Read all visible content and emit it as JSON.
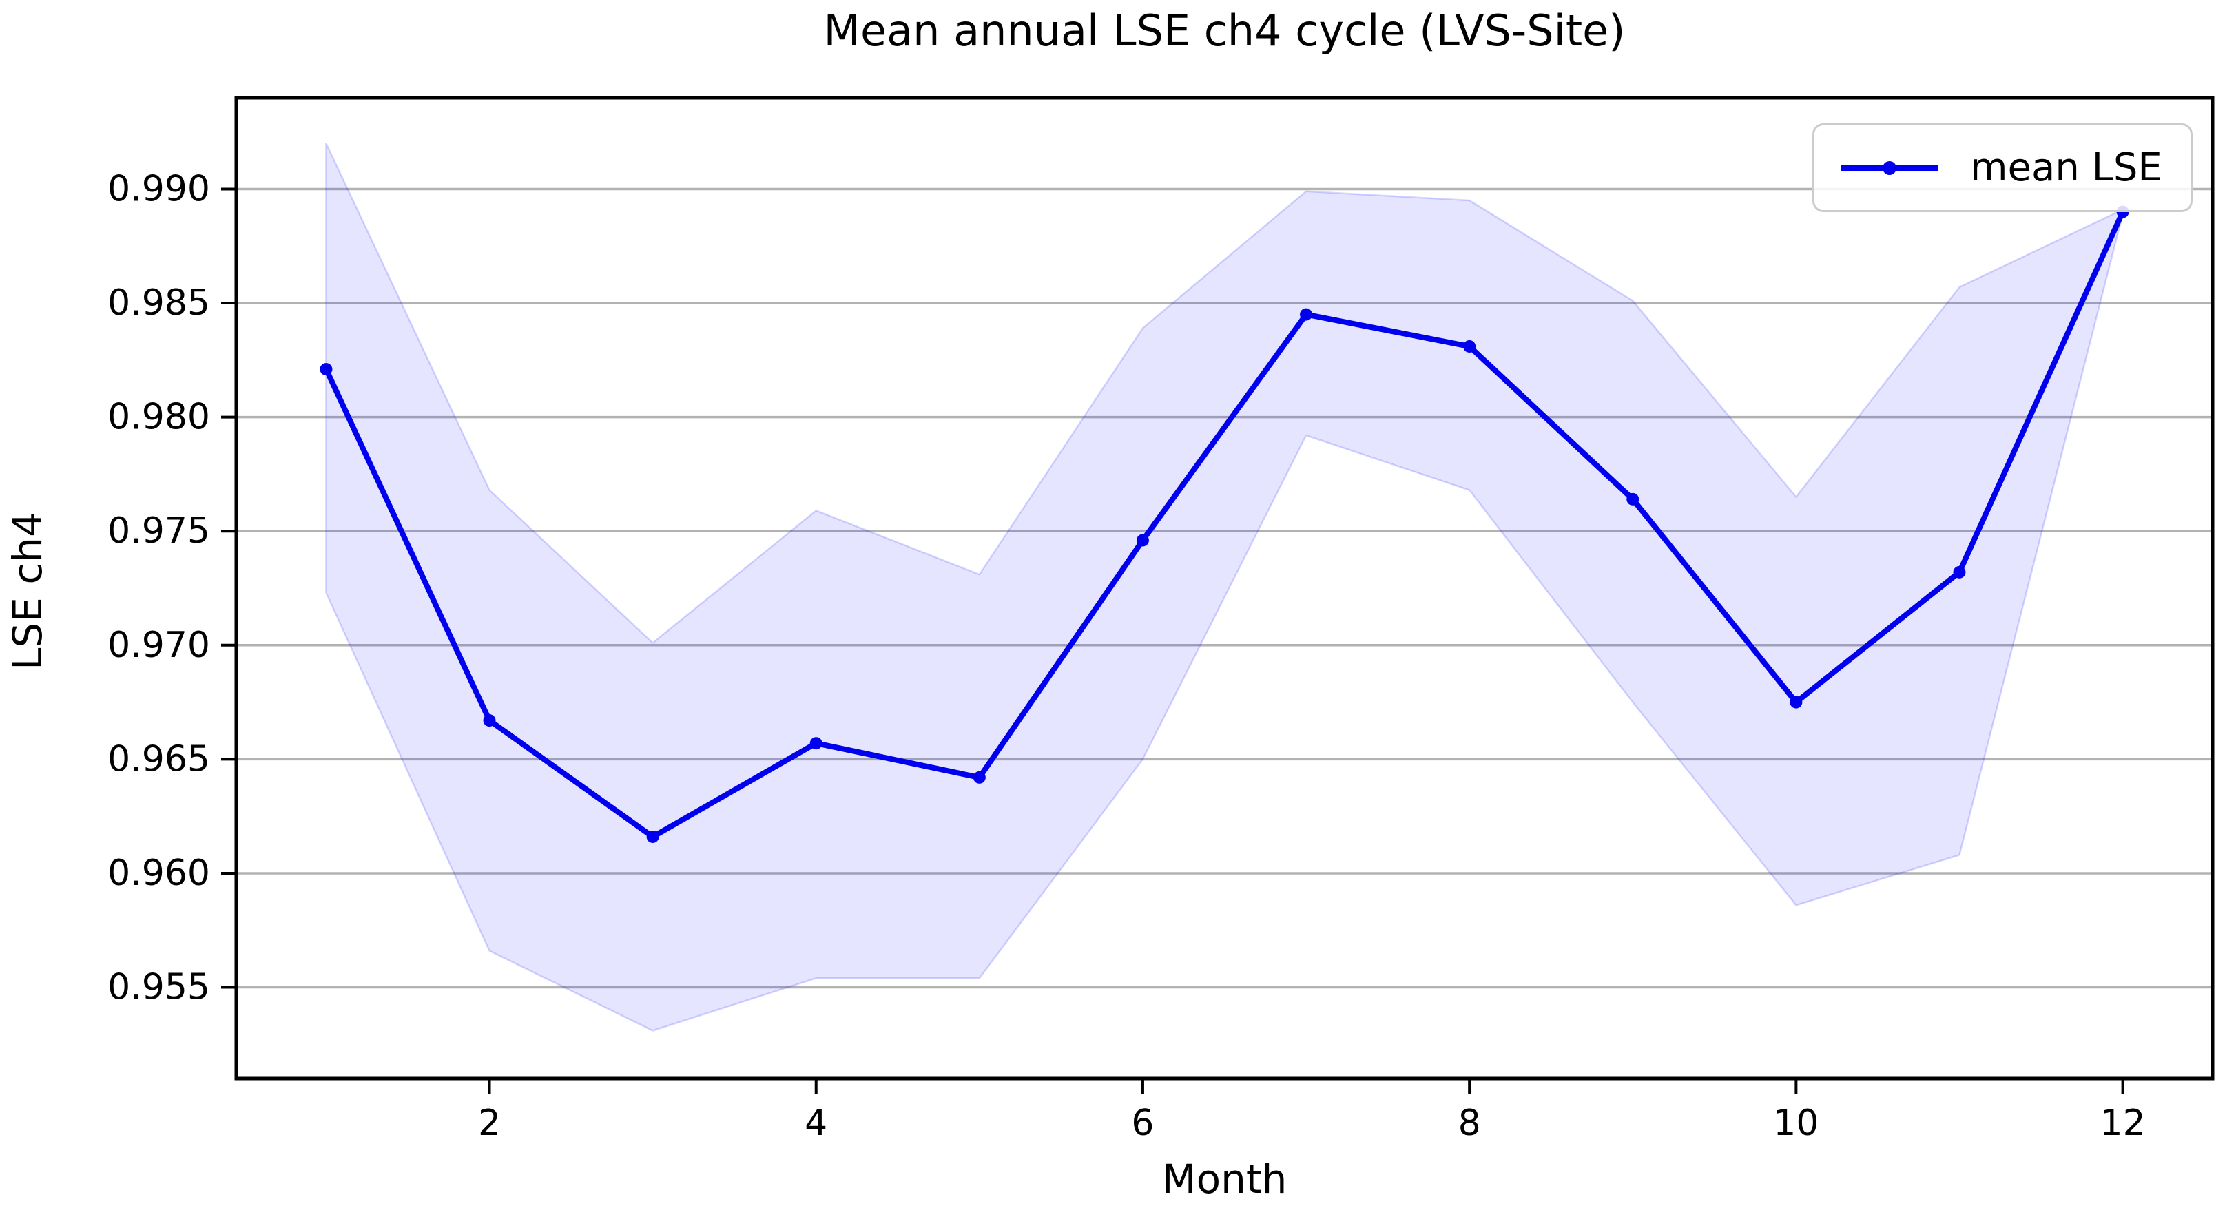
{
  "chart_data": {
    "type": "line",
    "title": "Mean annual LSE ch4 cycle (LVS-Site)",
    "xlabel": "Month",
    "ylabel": "LSE ch4",
    "legend": {
      "label": "mean LSE",
      "position": "upper right"
    },
    "x": [
      1,
      2,
      3,
      4,
      5,
      6,
      7,
      8,
      9,
      10,
      11,
      12
    ],
    "series": [
      {
        "name": "mean LSE",
        "values": [
          0.9821,
          0.9667,
          0.9616,
          0.9657,
          0.9642,
          0.9746,
          0.9845,
          0.9831,
          0.9764,
          0.9675,
          0.9732,
          0.989
        ]
      }
    ],
    "band": {
      "name": "std band",
      "upper": [
        0.992,
        0.9768,
        0.9701,
        0.9759,
        0.9731,
        0.9839,
        0.9899,
        0.9895,
        0.9851,
        0.9765,
        0.9857,
        0.9891
      ],
      "lower": [
        0.9723,
        0.9566,
        0.9531,
        0.9554,
        0.9554,
        0.965,
        0.9792,
        0.9768,
        0.9675,
        0.9586,
        0.9608,
        0.9889
      ]
    },
    "xlim": [
      0.45,
      12.55
    ],
    "ylim": [
      0.951,
      0.994
    ],
    "xticks": {
      "values": [
        2,
        4,
        6,
        8,
        10,
        12
      ],
      "labels": [
        "2",
        "4",
        "6",
        "8",
        "10",
        "12"
      ]
    },
    "yticks": {
      "values": [
        0.955,
        0.96,
        0.965,
        0.97,
        0.975,
        0.98,
        0.985,
        0.99
      ],
      "labels": [
        "0.955",
        "0.960",
        "0.965",
        "0.970",
        "0.975",
        "0.980",
        "0.985",
        "0.990"
      ]
    },
    "grid": "horizontal",
    "legend_position": "upper right",
    "colors": {
      "line": "#0000ee",
      "marker": "#0000ee",
      "band_fill": "rgba(0,0,255,0.10)",
      "band_edge": "rgba(0,0,255,0.16)",
      "grid": "#b2b2b2",
      "spine": "#000000",
      "text": "#000000",
      "legend_border": "#cccccc"
    }
  }
}
